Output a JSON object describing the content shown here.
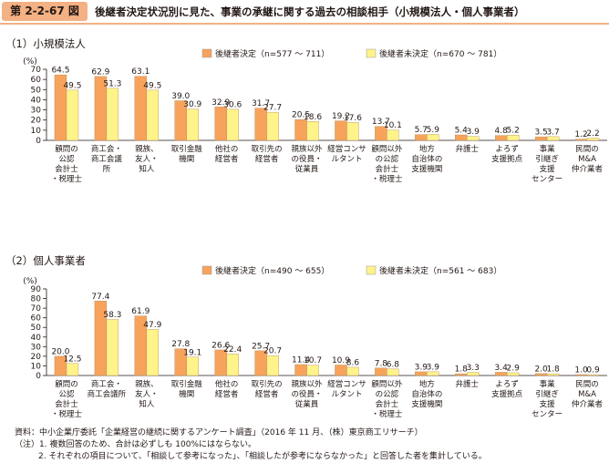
{
  "header": {
    "figure_no": "第 2-2-67 図",
    "title": "後継者決定状況別に見た、事業の承継に関する過去の相談相手（小規模法人・個人事業者）"
  },
  "colors": {
    "decided": "#f7a35c",
    "undecided": "#fff38a",
    "header_bg": "#f4b183"
  },
  "chart_data": [
    {
      "type": "bar",
      "title": "（1）小規模法人",
      "ylabel": "(%)",
      "ylim": [
        0,
        70
      ],
      "yticks": [
        "0",
        "10",
        "20",
        "30",
        "40",
        "50",
        "60",
        "70"
      ],
      "legend_position": "top",
      "categories": [
        [
          "顧問の",
          "公認",
          "会計士",
          "・税理士"
        ],
        [
          "商工会・",
          "商工会議",
          "所"
        ],
        [
          "親族、",
          "友人・",
          "知人"
        ],
        [
          "取引金融",
          "機関"
        ],
        [
          "他社の",
          "経営者"
        ],
        [
          "取引先の",
          "経営者"
        ],
        [
          "親族以外",
          "の役員・",
          "従業員"
        ],
        [
          "経営コンサ",
          "ルタント"
        ],
        [
          "顧問以外",
          "の公認",
          "会計士",
          "・税理士"
        ],
        [
          "地方",
          "自治体の",
          "支援機関"
        ],
        [
          "弁護士"
        ],
        [
          "よろず",
          "支援拠点"
        ],
        [
          "事業",
          "引継ぎ",
          "支援",
          "センター"
        ],
        [
          "民間の",
          "M&A",
          "仲介業者"
        ]
      ],
      "series": [
        {
          "name": "後継者決定（n=577 〜 711）",
          "values": [
            64.5,
            62.9,
            63.1,
            39.0,
            32.9,
            31.7,
            20.5,
            19.2,
            13.7,
            5.7,
            5.4,
            4.8,
            3.5,
            1.2
          ],
          "labels": [
            "64.5",
            "62.9",
            "63.1",
            "39.0",
            "32.9",
            "31.7",
            "20.5",
            "19.2",
            "13.7",
            "5.7",
            "5.4",
            "4.8",
            "3.5",
            "1.2"
          ]
        },
        {
          "name": "後継者未決定（n=670 〜 781）",
          "values": [
            49.5,
            51.3,
            49.5,
            30.9,
            30.6,
            27.7,
            18.6,
            17.6,
            10.1,
            5.9,
            3.9,
            5.2,
            3.7,
            2.2
          ],
          "labels": [
            "49.5",
            "51.3",
            "49.5",
            "30.9",
            "30.6",
            "27.7",
            "18.6",
            "17.6",
            "10.1",
            "5.9",
            "3.9",
            "5.2",
            "3.7",
            "2.2"
          ]
        }
      ]
    },
    {
      "type": "bar",
      "title": "（2）個人事業者",
      "ylabel": "(%)",
      "ylim": [
        0,
        90
      ],
      "yticks": [
        "0",
        "10",
        "20",
        "30",
        "40",
        "50",
        "60",
        "70",
        "80",
        "90"
      ],
      "legend_position": "top",
      "categories": [
        [
          "顧問の",
          "公認",
          "会計士",
          "・税理士"
        ],
        [
          "商工会・",
          "商工会議所"
        ],
        [
          "親族、",
          "友人・",
          "知人"
        ],
        [
          "取引金融",
          "機関"
        ],
        [
          "他社の",
          "経営者"
        ],
        [
          "取引先の",
          "経営者"
        ],
        [
          "親族以外",
          "の役員・",
          "従業員"
        ],
        [
          "経営コンサ",
          "ルタント"
        ],
        [
          "顧問以外",
          "の公認",
          "会計士",
          "・税理士"
        ],
        [
          "地方",
          "自治体の",
          "支援機関"
        ],
        [
          "弁護士"
        ],
        [
          "よろず",
          "支援拠点"
        ],
        [
          "事業",
          "引継ぎ",
          "支援",
          "センター"
        ],
        [
          "民間の",
          "M&A",
          "仲介業者"
        ]
      ],
      "series": [
        {
          "name": "後継者決定（n=490 〜 655）",
          "values": [
            20.0,
            77.4,
            61.9,
            27.8,
            26.6,
            25.7,
            11.4,
            10.9,
            7.8,
            3.9,
            1.8,
            3.4,
            2.0,
            1.0
          ],
          "labels": [
            "20.0",
            "77.4",
            "61.9",
            "27.8",
            "26.6",
            "25.7",
            "11.4",
            "10.9",
            "7.8",
            "3.9",
            "1.8",
            "3.4",
            "2.0",
            "1.0"
          ]
        },
        {
          "name": "後継者未決定（n=561 〜 683）",
          "values": [
            12.5,
            58.3,
            47.9,
            19.1,
            22.4,
            20.7,
            10.7,
            8.6,
            6.8,
            3.9,
            3.3,
            2.9,
            1.8,
            0.9
          ],
          "labels": [
            "12.5",
            "58.3",
            "47.9",
            "19.1",
            "22.4",
            "20.7",
            "10.7",
            "8.6",
            "6.8",
            "3.9",
            "3.3",
            "2.9",
            "1.8",
            "0.9"
          ]
        }
      ]
    }
  ],
  "notes": {
    "source": "資料：中小企業庁委託「企業経営の継続に関するアンケート調査」（2016 年 11 月、（株）東京商工リサーチ）",
    "note1": "（注）1. 複数回答のため、合計は必ずしも 100%にはならない。",
    "note2": "2. それぞれの項目について、「相談して参考になった」、「相談したが参考にならなかった」と回答した者を集計している。"
  }
}
